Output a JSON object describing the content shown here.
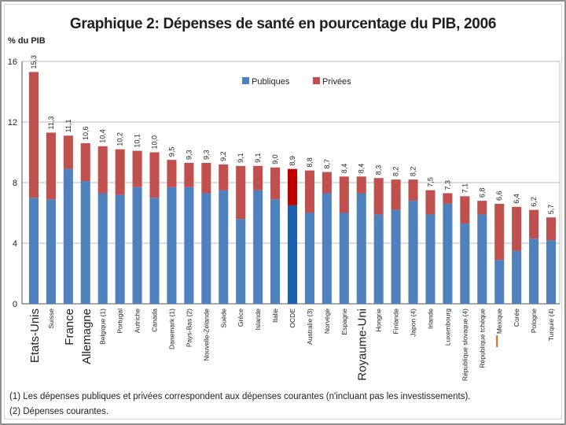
{
  "title": "Graphique 2: Dépenses de santé en pourcentage du PIB, 2006",
  "notes": [
    "(1) Les dépenses publiques et privées correspondent aux dépenses courantes (n'incluant pas les investissements).",
    "(2) Dépenses courantes."
  ],
  "chart_data": {
    "type": "bar",
    "stacked": true,
    "title": "Graphique 2: Dépenses de santé en pourcentage du PIB, 2006",
    "ylabel": "% du PIB",
    "ylim": [
      0,
      16
    ],
    "yticks": [
      0,
      4,
      8,
      12,
      16
    ],
    "grid": true,
    "legend": "top-center",
    "categories": [
      "Etats-Unis",
      "Suisse",
      "France",
      "Allemagne",
      "Belgique (1)",
      "Portugal",
      "Autriche",
      "Canada",
      "Danemark (1)",
      "Pays-Bas (2)",
      "Nouvelle-Zélande",
      "Suède",
      "Grèce",
      "Islande",
      "Italie",
      "OCDE",
      "Australie (3)",
      "Norvège",
      "Espagne",
      "Royaume-Uni",
      "Hongrie",
      "Finlande",
      "Japon (4)",
      "Irlande",
      "Luxembourg",
      "République slovaque (4)",
      "République tchèque",
      "Mexique",
      "Corée",
      "Pologne",
      "Turquie (4)"
    ],
    "total_labels": [
      "15,3",
      "11,3",
      "11,1",
      "10,6",
      "10,4",
      "10,2",
      "10,1",
      "10,0",
      "9,5",
      "9,3",
      "9,3",
      "9,2",
      "9,1",
      "9,1",
      "9,0",
      "8,9",
      "8,8",
      "8,7",
      "8,4",
      "8,4",
      "8,3",
      "8,2",
      "8,2",
      "7,5",
      "7,3",
      "7,1",
      "6,8",
      "6,6",
      "6,4",
      "6,2",
      "5,7"
    ],
    "highlight": [
      "Etats-Unis",
      "France",
      "Allemagne",
      "Royaume-Uni",
      "Mexique"
    ],
    "oecd_category": "OCDE",
    "colors": {
      "publiques": "#4f81bd",
      "privees": "#c0504d",
      "oecd_publiques": "#1f5fb0",
      "oecd_privees": "#c00000",
      "mexique_tick": "#e06020"
    },
    "series": [
      {
        "name": "Publiques",
        "values": [
          7.0,
          6.9,
          8.9,
          8.1,
          7.3,
          7.2,
          7.7,
          7.0,
          7.7,
          7.7,
          7.3,
          7.5,
          5.6,
          7.5,
          6.9,
          6.5,
          6.0,
          7.3,
          6.0,
          7.3,
          5.9,
          6.2,
          6.8,
          5.9,
          6.6,
          5.3,
          5.9,
          2.9,
          3.5,
          4.3,
          4.2
        ]
      },
      {
        "name": "Privées",
        "values": [
          8.3,
          4.4,
          2.2,
          2.5,
          3.1,
          3.0,
          2.4,
          3.0,
          1.8,
          1.6,
          2.0,
          1.7,
          3.5,
          1.6,
          2.1,
          2.4,
          2.8,
          1.4,
          2.4,
          1.1,
          2.4,
          2.0,
          1.4,
          1.6,
          0.7,
          1.8,
          0.9,
          3.7,
          2.9,
          1.9,
          1.5
        ]
      }
    ]
  }
}
